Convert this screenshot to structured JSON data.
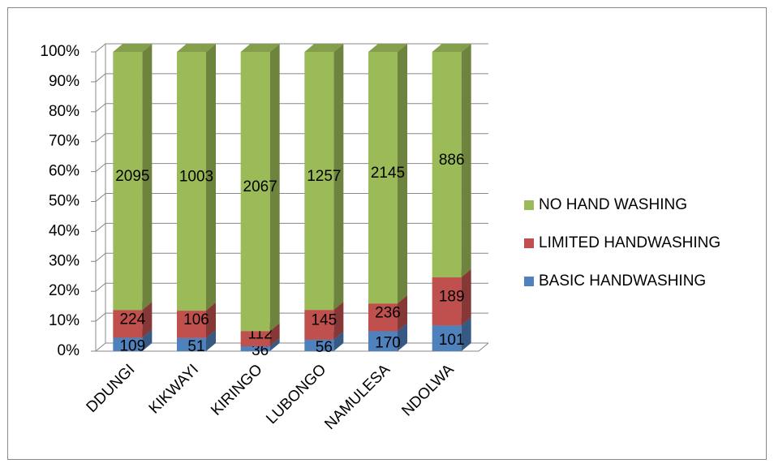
{
  "chart_data": {
    "type": "bar",
    "stacking": "percent",
    "categories": [
      "DDUNGI",
      "KIKWAYI",
      "KIRINGO",
      "LUBONGO",
      "NAMULESA",
      "NDOLWA"
    ],
    "series": [
      {
        "name": "BASIC HANDWASHING",
        "color": "#4f81bd",
        "values": [
          109,
          51,
          36,
          56,
          170,
          101
        ]
      },
      {
        "name": "LIMITED HANDWASHING",
        "color": "#c0504d",
        "values": [
          224,
          106,
          112,
          145,
          236,
          189
        ]
      },
      {
        "name": "NO HAND WASHING",
        "color": "#9bbb59",
        "values": [
          2095,
          1003,
          2067,
          1257,
          2145,
          886
        ]
      }
    ],
    "ylim": [
      0,
      100
    ],
    "yticks": [
      {
        "value": 0,
        "label": "0%"
      },
      {
        "value": 10,
        "label": "10%"
      },
      {
        "value": 20,
        "label": "20%"
      },
      {
        "value": 30,
        "label": "30%"
      },
      {
        "value": 40,
        "label": "40%"
      },
      {
        "value": 50,
        "label": "50%"
      },
      {
        "value": 60,
        "label": "60%"
      },
      {
        "value": 70,
        "label": "70%"
      },
      {
        "value": 80,
        "label": "80%"
      },
      {
        "value": 90,
        "label": "90%"
      },
      {
        "value": 100,
        "label": "100%"
      }
    ],
    "grid": true,
    "legend": "right"
  }
}
